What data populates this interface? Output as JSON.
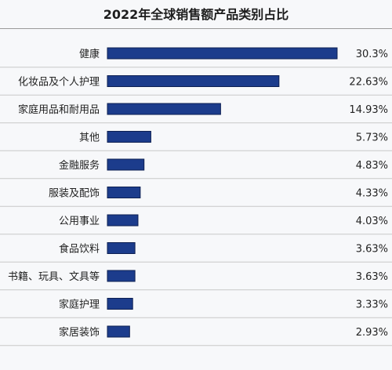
{
  "chart_data": {
    "type": "bar",
    "orientation": "horizontal",
    "title": "2022年全球销售额产品类别占比",
    "categories": [
      "健康",
      "化妆品及个人护理",
      "家庭用品和耐用品",
      "其他",
      "金融服务",
      "服装及配饰",
      "公用事业",
      "食品饮料",
      "书籍、玩具、文具等",
      "家庭护理",
      "家居装饰"
    ],
    "values": [
      30.3,
      22.63,
      14.93,
      5.73,
      4.83,
      4.33,
      4.03,
      3.63,
      3.63,
      3.33,
      2.93
    ],
    "value_labels": [
      "30.3%",
      "22.63%",
      "14.93%",
      "5.73%",
      "4.83%",
      "4.33%",
      "4.03%",
      "3.63%",
      "3.63%",
      "3.33%",
      "2.93%"
    ],
    "unit": "%",
    "xlim": [
      0,
      30.3
    ],
    "grid": false,
    "bar_color": "#1c3c8c",
    "row_divider_color": "#c8c8c8"
  }
}
